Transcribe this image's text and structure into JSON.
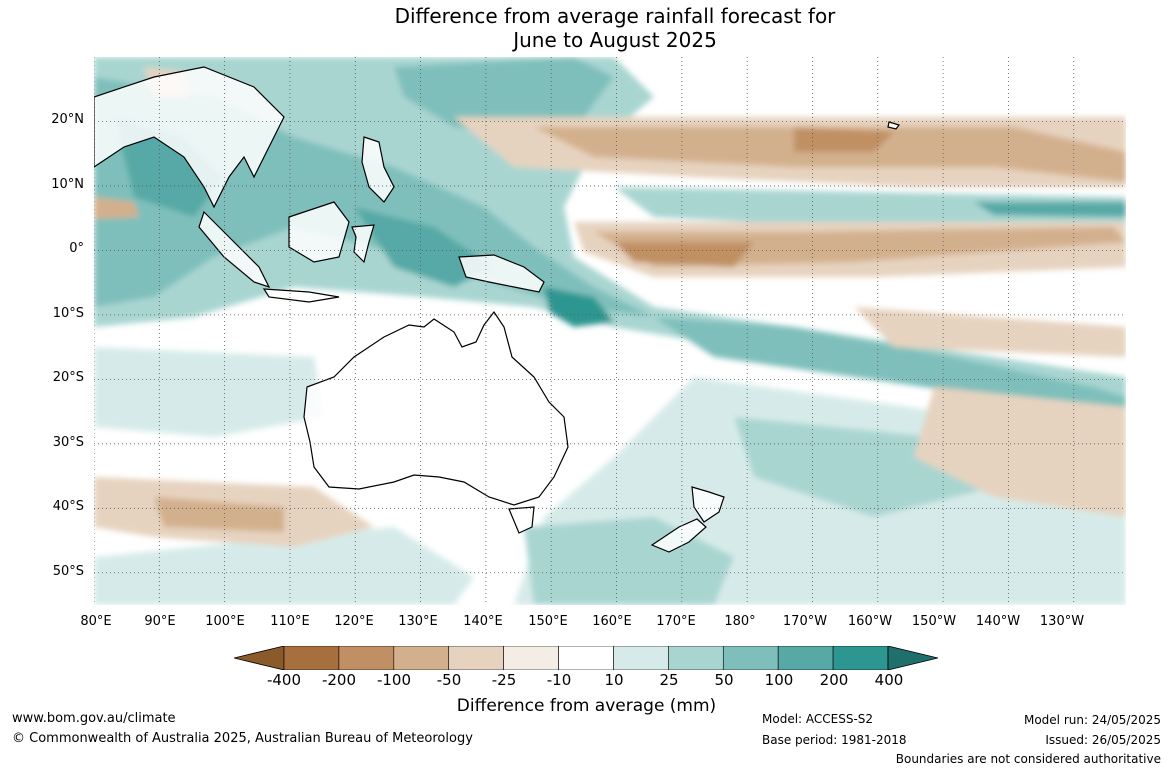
{
  "title": {
    "line1": "Difference from average rainfall forecast for",
    "line2": "June to August 2025"
  },
  "map": {
    "projection": "plate-carree",
    "extent": {
      "lon_min": 80,
      "lon_max": 238,
      "lat_min": -55,
      "lat_max": 30
    },
    "gridlines": "dotted",
    "lat_labels": [
      "20°N",
      "10°N",
      "0°",
      "10°S",
      "20°S",
      "30°S",
      "40°S",
      "50°S"
    ],
    "lat_values": [
      20,
      10,
      0,
      -10,
      -20,
      -30,
      -40,
      -50
    ],
    "lon_labels": [
      "80°E",
      "90°E",
      "100°E",
      "110°E",
      "120°E",
      "130°E",
      "140°E",
      "150°E",
      "160°E",
      "170°E",
      "180°",
      "170°W",
      "160°W",
      "150°W",
      "140°W",
      "130°W"
    ],
    "lon_values": [
      80,
      90,
      100,
      110,
      120,
      130,
      140,
      150,
      160,
      170,
      180,
      190,
      200,
      210,
      220,
      230
    ],
    "features": [
      "Australia",
      "New Zealand",
      "Papua New Guinea",
      "Indonesia",
      "Philippines",
      "Southeast Asia",
      "Pacific Islands",
      "Hawaii"
    ]
  },
  "colorbar": {
    "ticks": [
      "-400",
      "-200",
      "-100",
      "-50",
      "-25",
      "-10",
      "10",
      "25",
      "50",
      "100",
      "200",
      "400"
    ],
    "colors": [
      "#8b5a2b",
      "#a86f3e",
      "#c09064",
      "#d3b08d",
      "#e6d3bf",
      "#f3ede5",
      "#ffffff",
      "#d6ebe9",
      "#a9d5d1",
      "#7fbfbb",
      "#57a9a6",
      "#2e9691",
      "#1f6f6c"
    ],
    "title": "Difference from average (mm)"
  },
  "footer": {
    "website": "www.bom.gov.au/climate",
    "copyright": "© Commonwealth of Australia 2025, Australian Bureau of Meteorology",
    "model": "Model: ACCESS-S2",
    "base_period": "Base period: 1981-2018",
    "model_run": "Model run: 24/05/2025",
    "issued": "Issued: 26/05/2025",
    "disclaimer": "Boundaries are not considered authoritative"
  }
}
